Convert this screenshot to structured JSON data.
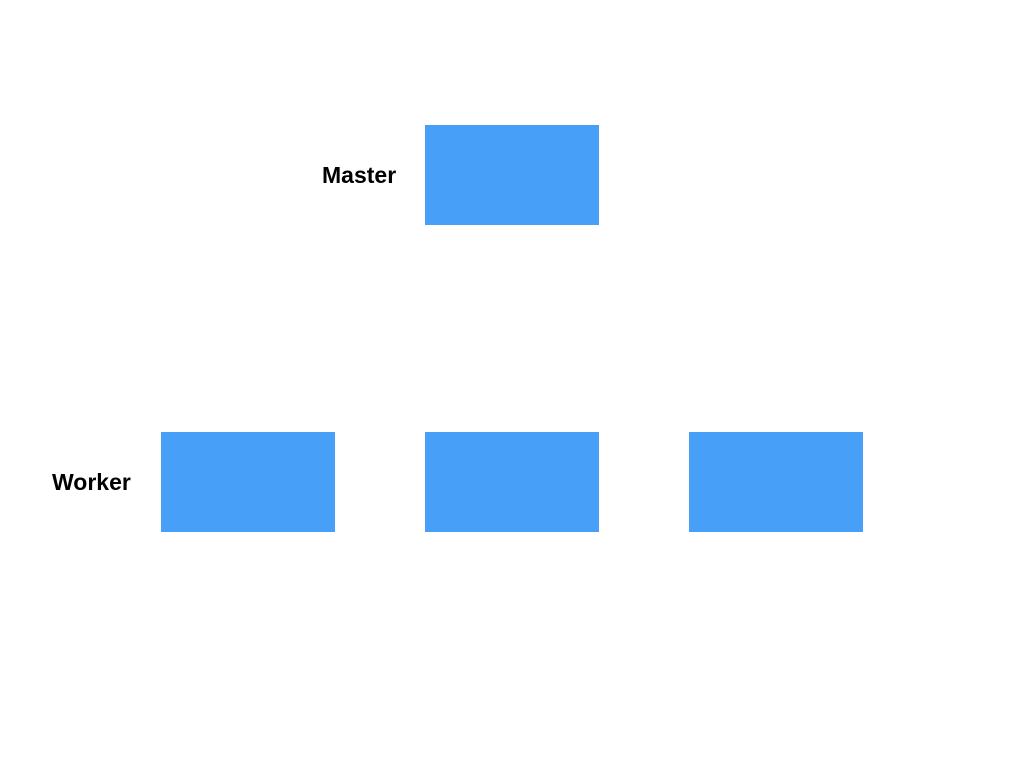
{
  "labels": {
    "master": "Master",
    "worker": "Worker"
  },
  "nodes": {
    "master_count": 1,
    "worker_count": 3
  },
  "colors": {
    "background": "#ffffff",
    "node_fill": "#489ff8",
    "label_text": "#000000"
  }
}
